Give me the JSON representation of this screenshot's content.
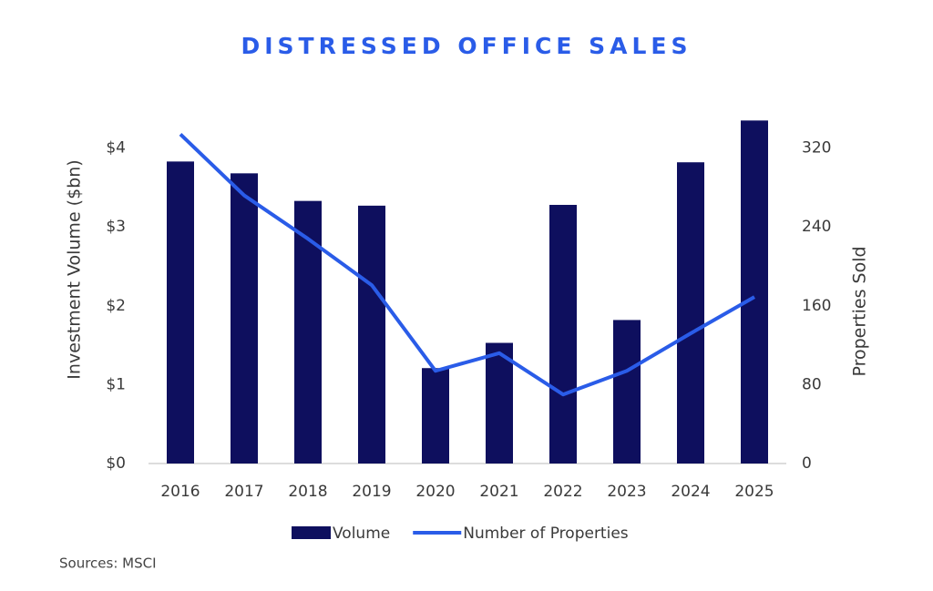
{
  "chart_data": {
    "type": "bar-line",
    "title": "DISTRESSED OFFICE SALES",
    "y_label": "Investment Volume ($bn)",
    "y2_label": "Properties Sold",
    "source": "Sources: MSCI",
    "categories": [
      "2016",
      "2017",
      "2018",
      "2019",
      "2020",
      "2021",
      "2022",
      "2023",
      "2024",
      "2025"
    ],
    "series": [
      {
        "name": "Volume",
        "type": "bar",
        "color": "#0e0f5e",
        "values": [
          3.83,
          3.68,
          3.33,
          3.27,
          1.21,
          1.53,
          3.28,
          1.82,
          3.82,
          4.35
        ]
      },
      {
        "name": "Number of Properties",
        "type": "line",
        "color": "#2a5ce8",
        "axis": "y2",
        "values": [
          334,
          272,
          228,
          181,
          94,
          112,
          70,
          94,
          132,
          169
        ]
      }
    ],
    "ylim": [
      0,
      4.4
    ],
    "yticks": [
      {
        "value": 0,
        "label": "$0"
      },
      {
        "value": 1,
        "label": "$1"
      },
      {
        "value": 2,
        "label": "$2"
      },
      {
        "value": 3,
        "label": "$3"
      },
      {
        "value": 4,
        "label": "$4"
      }
    ],
    "y2lim": [
      0,
      352
    ],
    "y2ticks": [
      0,
      80,
      160,
      240,
      320
    ],
    "grid": false
  }
}
